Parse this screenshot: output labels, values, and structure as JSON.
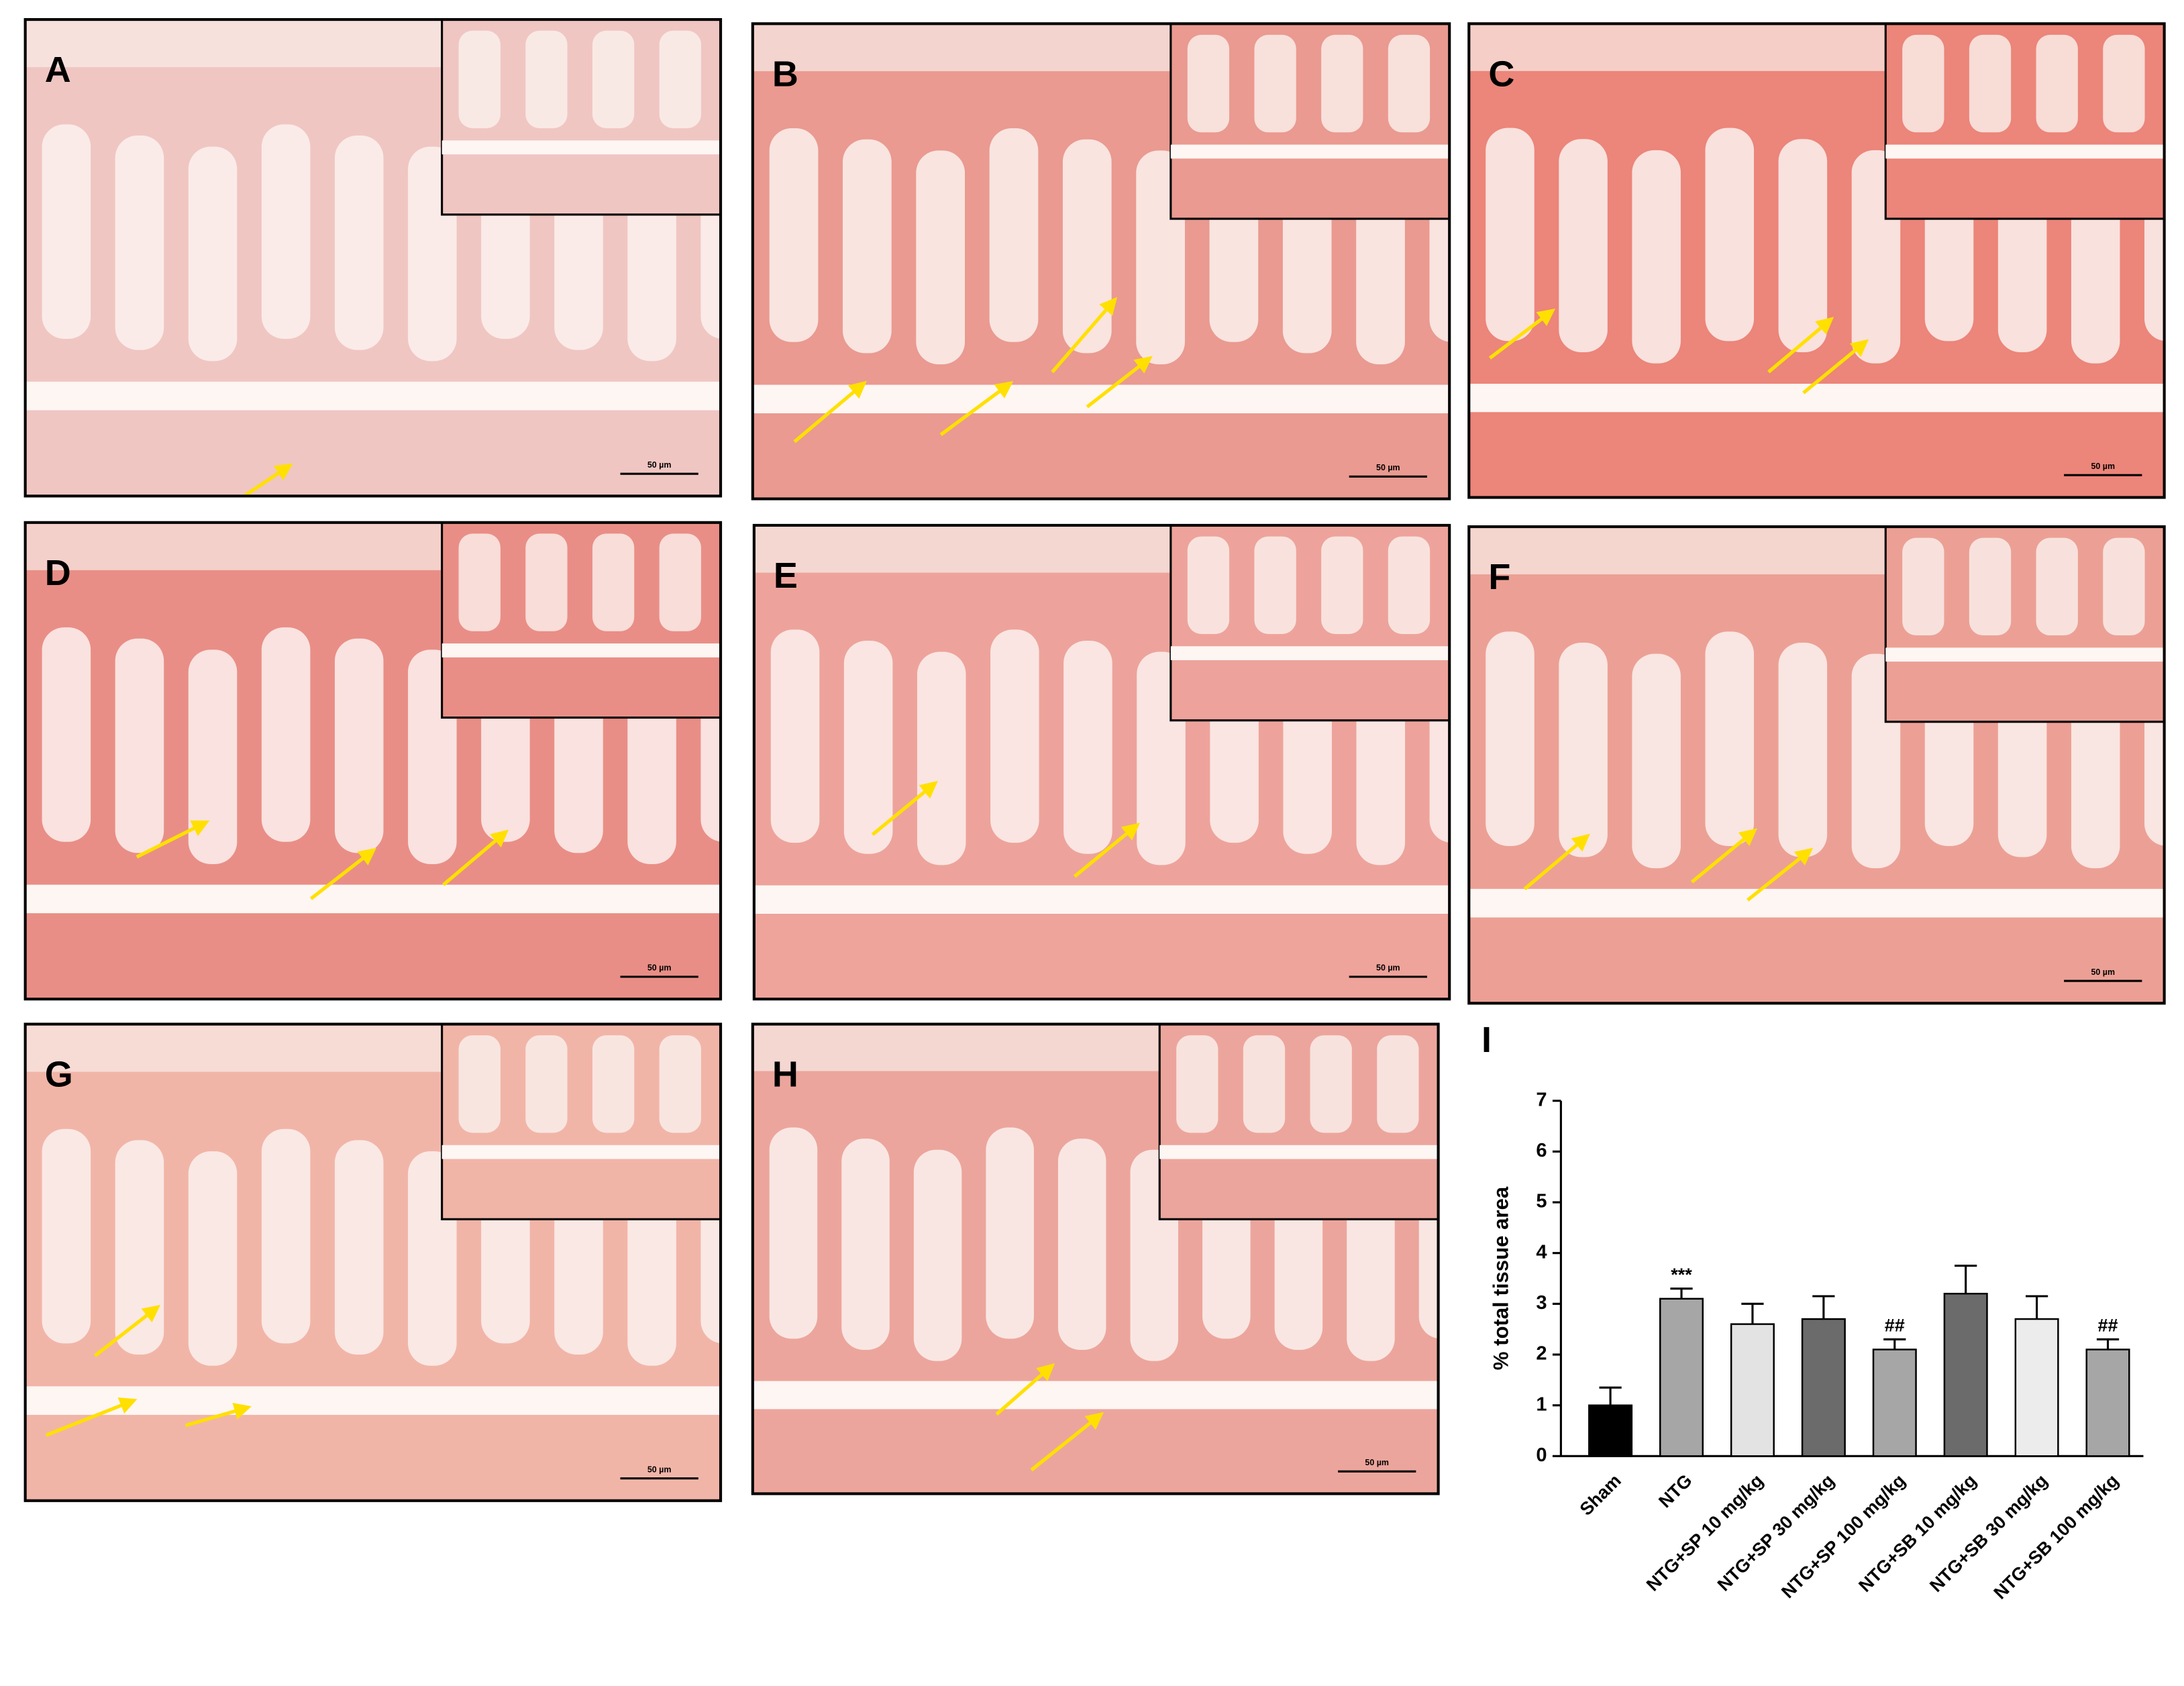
{
  "panels": [
    {
      "label": "A"
    },
    {
      "label": "B"
    },
    {
      "label": "C"
    },
    {
      "label": "D"
    },
    {
      "label": "E"
    },
    {
      "label": "F"
    },
    {
      "label": "G"
    },
    {
      "label": "H"
    }
  ],
  "scale_bar_label": "50 µm",
  "chart_data": {
    "type": "bar",
    "panel_label": "I",
    "ylabel": "% total tissue area",
    "categories": [
      "Sham",
      "NTG",
      "NTG+SP 10 mg/kg",
      "NTG+SP 30 mg/kg",
      "NTG+SP 100 mg/kg",
      "NTG+SB 10 mg/kg",
      "NTG+SB 30 mg/kg",
      "NTG+SB 100 mg/kg"
    ],
    "values": [
      1.0,
      3.1,
      2.6,
      2.7,
      2.1,
      3.2,
      2.7,
      2.1
    ],
    "errors": [
      0.35,
      0.2,
      0.4,
      0.45,
      0.2,
      0.55,
      0.45,
      0.2
    ],
    "colors": [
      "#000000",
      "#a6a6a6",
      "#e3e3e3",
      "#6b6b6b",
      "#a6a6a6",
      "#6b6b6b",
      "#ececec",
      "#a6a6a6"
    ],
    "annotations": [
      null,
      "***",
      null,
      null,
      "##",
      null,
      null,
      "##"
    ],
    "ylim": [
      0,
      7
    ],
    "yticks": [
      0,
      1,
      2,
      3,
      4,
      5,
      6,
      7
    ]
  }
}
